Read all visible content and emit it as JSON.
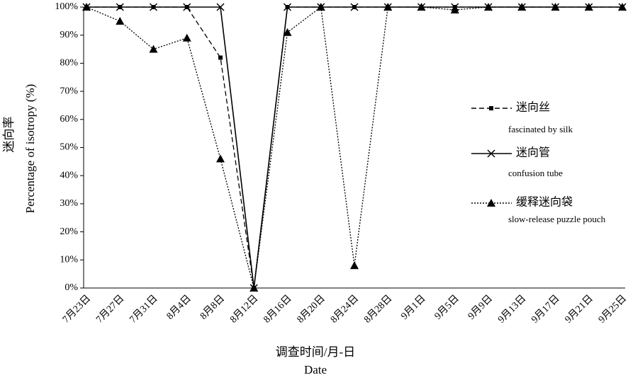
{
  "chart_data": {
    "type": "line",
    "y_title": "迷向率",
    "y_title_en": "Percentage of isotropy (%)",
    "x_title": "调查时间/月-日",
    "x_title_en": "Date",
    "categories": [
      "7月23日",
      "7月27日",
      "7月31日",
      "8月4日",
      "8月8日",
      "8月12日",
      "8月16日",
      "8月20日",
      "8月24日",
      "8月28日",
      "9月1日",
      "9月5日",
      "9月9日",
      "9月13日",
      "9月17日",
      "9月21日",
      "9月25日"
    ],
    "ylim": [
      0,
      100
    ],
    "yticks": [
      {
        "value": 0,
        "label": "0%"
      },
      {
        "value": 10,
        "label": "10%"
      },
      {
        "value": 20,
        "label": "20%"
      },
      {
        "value": 30,
        "label": "30%"
      },
      {
        "value": 40,
        "label": "40%"
      },
      {
        "value": 50,
        "label": "50%"
      },
      {
        "value": 60,
        "label": "60%"
      },
      {
        "value": 70,
        "label": "70%"
      },
      {
        "value": 80,
        "label": "80%"
      },
      {
        "value": 90,
        "label": "90%"
      },
      {
        "value": 100,
        "label": "100%"
      }
    ],
    "series": [
      {
        "name": "迷向丝",
        "name_en": "fascinated by silk",
        "color": "#000000",
        "dash": "dashed",
        "marker": "square",
        "values": [
          100,
          100,
          100,
          100,
          82,
          0,
          100,
          100,
          100,
          100,
          100,
          100,
          100,
          100,
          100,
          100,
          100
        ]
      },
      {
        "name": "迷向管",
        "name_en": "confusion tube",
        "color": "#000000",
        "dash": "solid",
        "marker": "x",
        "values": [
          100,
          100,
          100,
          100,
          100,
          0,
          100,
          100,
          100,
          100,
          100,
          100,
          100,
          100,
          100,
          100,
          100
        ]
      },
      {
        "name": "缓释迷向袋",
        "name_en": "slow-release puzzle pouch",
        "color": "#000000",
        "dash": "dotted",
        "marker": "triangle",
        "values": [
          100,
          95,
          85,
          89,
          46,
          0,
          91,
          100,
          8,
          100,
          100,
          99,
          100,
          100,
          100,
          100,
          100
        ]
      }
    ]
  }
}
